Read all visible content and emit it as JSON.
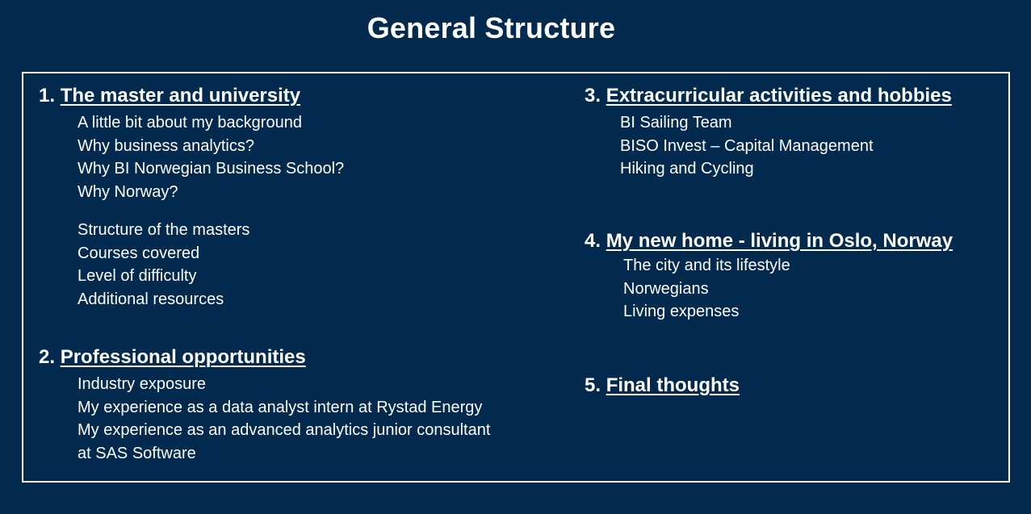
{
  "title": "General Structure",
  "sections": [
    {
      "number": "1.",
      "heading": "The master and university",
      "items": [
        "A little bit about my background",
        "Why business analytics?",
        "Why BI Norwegian Business School?",
        "Why Norway?",
        "Structure of the masters",
        "Courses covered",
        "Level of difficulty",
        "Additional resources"
      ]
    },
    {
      "number": "2.",
      "heading": "Professional opportunities",
      "items": [
        "Industry exposure",
        "My experience as a data analyst intern at Rystad Energy",
        "My experience as an advanced analytics junior consultant",
        "at SAS Software"
      ]
    },
    {
      "number": "3.",
      "heading": "Extracurricular activities and hobbies",
      "items": [
        "BI Sailing Team",
        "BISO Invest – Capital Management",
        "Hiking and Cycling"
      ]
    },
    {
      "number": "4.",
      "heading": "My new home - living in Oslo, Norway",
      "items": [
        "The city and its lifestyle",
        "Norwegians",
        "Living expenses"
      ]
    },
    {
      "number": "5.",
      "heading": "Final thoughts",
      "items": []
    }
  ]
}
